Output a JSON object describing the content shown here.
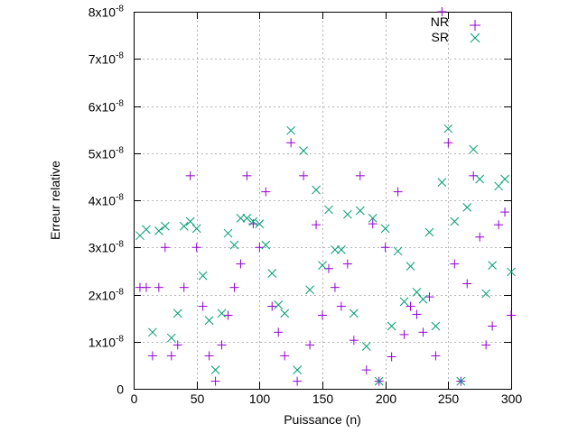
{
  "chart_data": {
    "type": "scatter",
    "title": "",
    "xlabel": "Puissance (n)",
    "ylabel": "Erreur relative",
    "xlim": [
      0,
      300
    ],
    "ylim": [
      0,
      8e-08
    ],
    "xticks": [
      0,
      50,
      100,
      150,
      200,
      250,
      300
    ],
    "xtick_labels": [
      "0",
      "50",
      "100",
      "150",
      "200",
      "250",
      "300"
    ],
    "yticks": [
      0,
      1e-08,
      2e-08,
      3e-08,
      4e-08,
      5e-08,
      6e-08,
      7e-08,
      8e-08
    ],
    "ytick_labels": [
      {
        "mant": "0",
        "exp": ""
      },
      {
        "mant": "1x10",
        "exp": "-8"
      },
      {
        "mant": "2x10",
        "exp": "-8"
      },
      {
        "mant": "3x10",
        "exp": "-8"
      },
      {
        "mant": "4x10",
        "exp": "-8"
      },
      {
        "mant": "5x10",
        "exp": "-8"
      },
      {
        "mant": "6x10",
        "exp": "-8"
      },
      {
        "mant": "7x10",
        "exp": "-8"
      },
      {
        "mant": "8x10",
        "exp": "-8"
      }
    ],
    "grid": true,
    "legend_position": "top-right",
    "series": [
      {
        "name": "NR",
        "marker": "+",
        "color": "#9400d3",
        "x": [
          5,
          10,
          15,
          20,
          25,
          30,
          35,
          40,
          45,
          50,
          55,
          60,
          65,
          70,
          75,
          80,
          85,
          90,
          95,
          100,
          105,
          110,
          115,
          120,
          125,
          130,
          135,
          140,
          145,
          150,
          155,
          160,
          165,
          170,
          175,
          180,
          185,
          190,
          195,
          200,
          205,
          210,
          215,
          220,
          225,
          230,
          235,
          240,
          245,
          250,
          255,
          260,
          265,
          270,
          275,
          280,
          285,
          290,
          295,
          300
        ],
        "y": [
          2.15e-08,
          2.15e-08,
          7e-09,
          2.15e-08,
          3e-08,
          7e-09,
          9.3e-09,
          2.15e-08,
          4.52e-08,
          3e-08,
          1.75e-08,
          7e-09,
          1.6e-09,
          9.3e-09,
          1.56e-08,
          2.15e-08,
          2.65e-08,
          4.52e-08,
          3.5e-08,
          3e-08,
          4.18e-08,
          1.75e-08,
          1.2e-08,
          7e-09,
          5.22e-08,
          1.6e-09,
          4.52e-08,
          9.3e-09,
          3.48e-08,
          1.56e-08,
          2.55e-08,
          2.15e-08,
          1.75e-08,
          2.65e-08,
          1.03e-08,
          4.52e-08,
          4e-09,
          3.5e-08,
          1.6e-09,
          3e-08,
          6.8e-09,
          4.18e-08,
          1.15e-08,
          1.75e-08,
          1.58e-08,
          1.2e-08,
          1.95e-08,
          7e-09,
          8e-08,
          5.22e-08,
          2.65e-08,
          1.6e-09,
          2.23e-08,
          4.52e-08,
          3.22e-08,
          9.3e-09,
          1.33e-08,
          3.48e-08,
          3.75e-08,
          1.56e-08
        ]
      },
      {
        "name": "SR",
        "marker": "x",
        "color": "#009e73",
        "x": [
          5,
          10,
          15,
          20,
          25,
          30,
          35,
          40,
          45,
          50,
          55,
          60,
          65,
          70,
          75,
          80,
          85,
          90,
          95,
          100,
          105,
          110,
          115,
          120,
          125,
          130,
          135,
          140,
          145,
          150,
          155,
          160,
          165,
          170,
          175,
          180,
          185,
          190,
          195,
          200,
          205,
          210,
          215,
          220,
          225,
          230,
          235,
          240,
          245,
          250,
          255,
          260,
          265,
          270,
          275,
          280,
          285,
          290,
          295,
          300
        ],
        "y": [
          3.25e-08,
          3.38e-08,
          1.2e-08,
          3.35e-08,
          3.45e-08,
          1.08e-08,
          1.6e-08,
          3.45e-08,
          3.55e-08,
          3.4e-08,
          2.4e-08,
          1.45e-08,
          4e-09,
          1.6e-08,
          3.3e-08,
          3.05e-08,
          3.62e-08,
          3.62e-08,
          3.55e-08,
          3.5e-08,
          3.05e-08,
          2.45e-08,
          1.78e-08,
          1.6e-08,
          5.48e-08,
          4e-09,
          5.05e-08,
          2.1e-08,
          4.22e-08,
          2.62e-08,
          3.8e-08,
          2.95e-08,
          2.95e-08,
          3.7e-08,
          1.6e-08,
          3.78e-08,
          9e-09,
          3.62e-08,
          1.6e-09,
          3.4e-08,
          1.33e-08,
          2.92e-08,
          1.85e-08,
          2.6e-08,
          2.05e-08,
          1.9e-08,
          3.32e-08,
          1.33e-08,
          4.38e-08,
          5.52e-08,
          3.55e-08,
          1.6e-09,
          3.85e-08,
          5.08e-08,
          4.45e-08,
          2.02e-08,
          2.62e-08,
          4.3e-08,
          4.45e-08,
          2.48e-08
        ]
      }
    ]
  }
}
